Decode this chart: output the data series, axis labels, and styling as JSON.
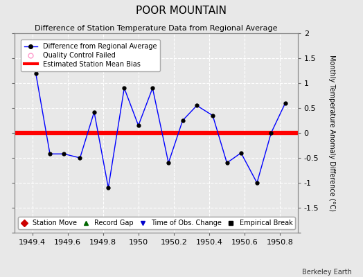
{
  "title": "POOR MOUNTAIN",
  "subtitle": "Difference of Station Temperature Data from Regional Average",
  "ylabel_right": "Monthly Temperature Anomaly Difference (°C)",
  "credit": "Berkeley Earth",
  "xlim": [
    1949.3,
    1950.9
  ],
  "ylim": [
    -2,
    2
  ],
  "yticks": [
    -2,
    -1.5,
    -1,
    -0.5,
    0,
    0.5,
    1,
    1.5,
    2
  ],
  "ytick_labels_right": [
    "",
    "-1.5",
    "-1",
    "-0.5",
    "0",
    "0.5",
    "1",
    "1.5",
    "2"
  ],
  "xticks": [
    1949.4,
    1949.6,
    1949.8,
    1950.0,
    1950.2,
    1950.4,
    1950.6,
    1950.8
  ],
  "xtick_labels": [
    "1949.4",
    "1949.6",
    "1949.8",
    "1950",
    "1950.2",
    "1950.4",
    "1950.6",
    "1950.8"
  ],
  "x_data": [
    1949.42,
    1949.5,
    1949.58,
    1949.67,
    1949.75,
    1949.83,
    1949.92,
    1950.0,
    1950.08,
    1950.17,
    1950.25,
    1950.33,
    1950.42,
    1950.5,
    1950.58,
    1950.67,
    1950.75,
    1950.83
  ],
  "y_data": [
    1.2,
    -0.42,
    -0.42,
    -0.5,
    0.42,
    -1.1,
    0.9,
    0.15,
    0.9,
    -0.6,
    0.25,
    0.55,
    0.35,
    -0.6,
    -0.4,
    -1.0,
    0.0,
    0.6
  ],
  "bias_value": 0.0,
  "line_color": "#0000ff",
  "bias_color": "#ff0000",
  "bg_color": "#e8e8e8",
  "grid_color": "#ffffff",
  "legend1_items": [
    {
      "label": "Difference from Regional Average"
    },
    {
      "label": "Quality Control Failed"
    },
    {
      "label": "Estimated Station Mean Bias"
    }
  ],
  "legend2_items": [
    {
      "label": "Station Move",
      "color": "#cc0000",
      "marker": "D"
    },
    {
      "label": "Record Gap",
      "color": "#006600",
      "marker": "^"
    },
    {
      "label": "Time of Obs. Change",
      "color": "#0000cc",
      "marker": "v"
    },
    {
      "label": "Empirical Break",
      "color": "#000000",
      "marker": "s"
    }
  ],
  "title_fontsize": 11,
  "subtitle_fontsize": 8,
  "tick_fontsize": 8,
  "legend_fontsize": 7,
  "credit_fontsize": 7
}
